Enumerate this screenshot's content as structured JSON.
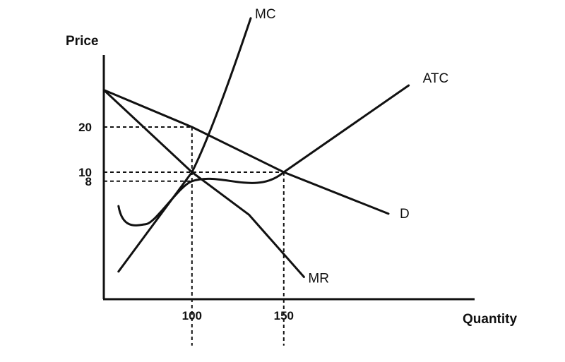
{
  "chart_data": {
    "type": "line",
    "title": "",
    "xlabel": "Quantity",
    "ylabel": "Price",
    "x_ticks": [
      {
        "value": 100,
        "label": "100"
      },
      {
        "value": 150,
        "label": "150"
      }
    ],
    "y_ticks": [
      {
        "value": 20,
        "label": "20"
      },
      {
        "value": 10,
        "label": "10"
      },
      {
        "value": 8,
        "label": "8"
      }
    ],
    "series": [
      {
        "name": "D",
        "points": [
          [
            52,
            28.2
          ],
          [
            100,
            20
          ],
          [
            150,
            10
          ],
          [
            207,
            0.8
          ]
        ]
      },
      {
        "name": "MR",
        "points": [
          [
            52,
            28.2
          ],
          [
            100,
            10
          ],
          [
            131,
            0.6
          ],
          [
            161,
            -13.2
          ]
        ]
      },
      {
        "name": "MC",
        "points": [
          [
            60,
            -12
          ],
          [
            100,
            10
          ],
          [
            132,
            44.1
          ]
        ]
      },
      {
        "name": "ATC",
        "points": [
          [
            60,
            2.5
          ],
          [
            75,
            -1.5
          ],
          [
            100,
            8
          ],
          [
            150,
            10
          ],
          [
            218,
            29.2
          ]
        ]
      }
    ],
    "reference_lines": [
      {
        "from": [
          52,
          20
        ],
        "to": [
          100,
          20
        ]
      },
      {
        "from": [
          52,
          10
        ],
        "to": [
          150,
          10
        ]
      },
      {
        "from": [
          52,
          8
        ],
        "to": [
          100,
          8
        ]
      },
      {
        "from": [
          100,
          20
        ],
        "to": [
          100,
          -28.4
        ]
      },
      {
        "from": [
          150,
          10
        ],
        "to": [
          150,
          -28.4
        ]
      }
    ],
    "grid": false,
    "legend": "none"
  }
}
